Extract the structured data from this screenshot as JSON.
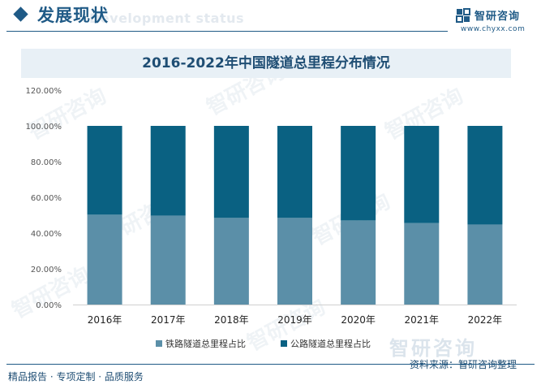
{
  "header": {
    "section_title": "发展现状",
    "section_subtitle": "Development status",
    "brand_name": "智研咨询",
    "brand_url": "www.chyxx.com"
  },
  "footer": {
    "left_text": "精品报告 · 专项定制 · 品质服务",
    "source": "资料来源：智研咨询整理"
  },
  "watermark": {
    "text": "智研咨询"
  },
  "chart_data": {
    "type": "bar",
    "stacked": true,
    "title": "2016-2022年中国隧道总里程分布情况",
    "categories": [
      "2016年",
      "2017年",
      "2018年",
      "2019年",
      "2020年",
      "2021年",
      "2022年"
    ],
    "series": [
      {
        "name": "铁路隧道总里程占比",
        "color": "#5b8fa8",
        "values": [
          50.3,
          49.8,
          48.5,
          48.5,
          47.1,
          45.6,
          44.8
        ]
      },
      {
        "name": "公路隧道总里程占比",
        "color": "#0a6182",
        "values": [
          49.7,
          50.2,
          51.5,
          51.5,
          52.9,
          54.4,
          55.2
        ]
      }
    ],
    "ylim": [
      0,
      120
    ],
    "yticks": [
      "0.00%",
      "20.00%",
      "40.00%",
      "60.00%",
      "80.00%",
      "100.00%",
      "120.00%"
    ],
    "grid": false,
    "legend_position": "bottom"
  }
}
